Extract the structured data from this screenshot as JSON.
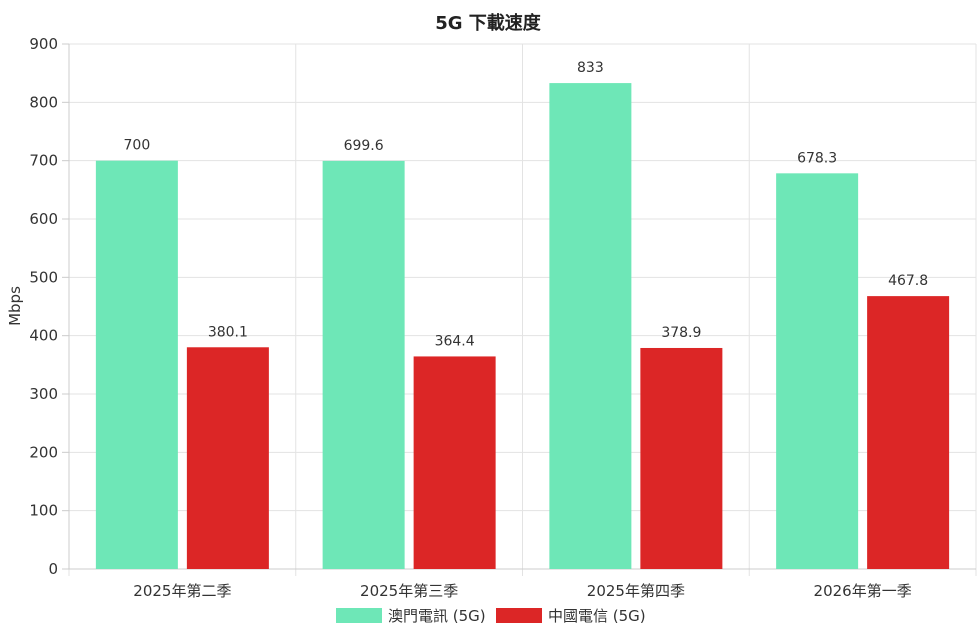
{
  "chart_data": {
    "type": "bar",
    "title": "5G 下載速度",
    "ylabel": "Mbps",
    "xlabel": "",
    "ylim": [
      0,
      900
    ],
    "yticks": [
      0,
      100,
      200,
      300,
      400,
      500,
      600,
      700,
      800,
      900
    ],
    "categories": [
      "2025年第二季",
      "2025年第三季",
      "2025年第四季",
      "2026年第一季"
    ],
    "series": [
      {
        "name": "澳門電訊 (5G)",
        "color": "#6ee7b7",
        "values": [
          700,
          699.6,
          833,
          678.3
        ]
      },
      {
        "name": "中國電信 (5G)",
        "color": "#dc2626",
        "values": [
          380.1,
          364.4,
          378.9,
          467.8
        ]
      }
    ],
    "data_labels": [
      [
        "700",
        "699.6",
        "833",
        "678.3"
      ],
      [
        "380.1",
        "364.4",
        "378.9",
        "467.8"
      ]
    ],
    "grid": true,
    "legend_position": "bottom-center"
  }
}
